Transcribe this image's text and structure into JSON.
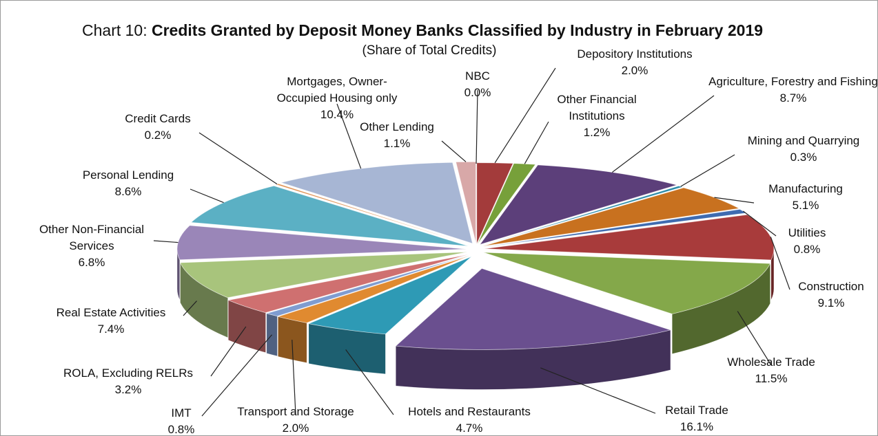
{
  "chart_data": {
    "type": "pie3d",
    "title_prefix": "Chart 10:",
    "title": "Credits Granted by Deposit Money Banks Classified by Industry in February 2019",
    "subtitle": "(Share of Total Credits)",
    "categories": [
      "NBC",
      "Depository Institutions",
      "Other Financial Institutions",
      "Agriculture, Forestry and Fishing",
      "Mining and Quarrying",
      "Manufacturing",
      "Utilities",
      "Construction",
      "Wholesale Trade",
      "Retail Trade",
      "Hotels and Restaurants",
      "Transport and Storage",
      "IMT",
      "ROLA, Excluding RELRs",
      "Real Estate Activities",
      "Other Non-Financial Services",
      "Personal Lending",
      "Credit Cards",
      "Mortgages, Owner-Occupied Housing only",
      "Other Lending"
    ],
    "values": [
      0.0,
      2.0,
      1.2,
      8.7,
      0.3,
      5.1,
      0.8,
      9.1,
      11.5,
      16.1,
      4.7,
      2.0,
      0.8,
      3.2,
      7.4,
      6.8,
      8.6,
      0.2,
      10.4,
      1.1
    ],
    "value_labels": [
      "0.0%",
      "2.0%",
      "1.2%",
      "8.7%",
      "0.3%",
      "5.1%",
      "0.8%",
      "9.1%",
      "11.5%",
      "16.1%",
      "4.7%",
      "2.0%",
      "0.8%",
      "3.2%",
      "7.4%",
      "6.8%",
      "8.6%",
      "0.2%",
      "10.4%",
      "1.1%"
    ],
    "colors": [
      "#7f6060",
      "#a33b3b",
      "#77a03a",
      "#5c3f7a",
      "#2a8ba8",
      "#c8711f",
      "#3e6bb0",
      "#a83b3b",
      "#84a84a",
      "#6a4f8f",
      "#2e9ab5",
      "#e08a30",
      "#7f9cd0",
      "#cf7070",
      "#a8c47c",
      "#9a86b8",
      "#5bb0c4",
      "#e09050",
      "#a7b6d4",
      "#d8a8a8"
    ]
  }
}
